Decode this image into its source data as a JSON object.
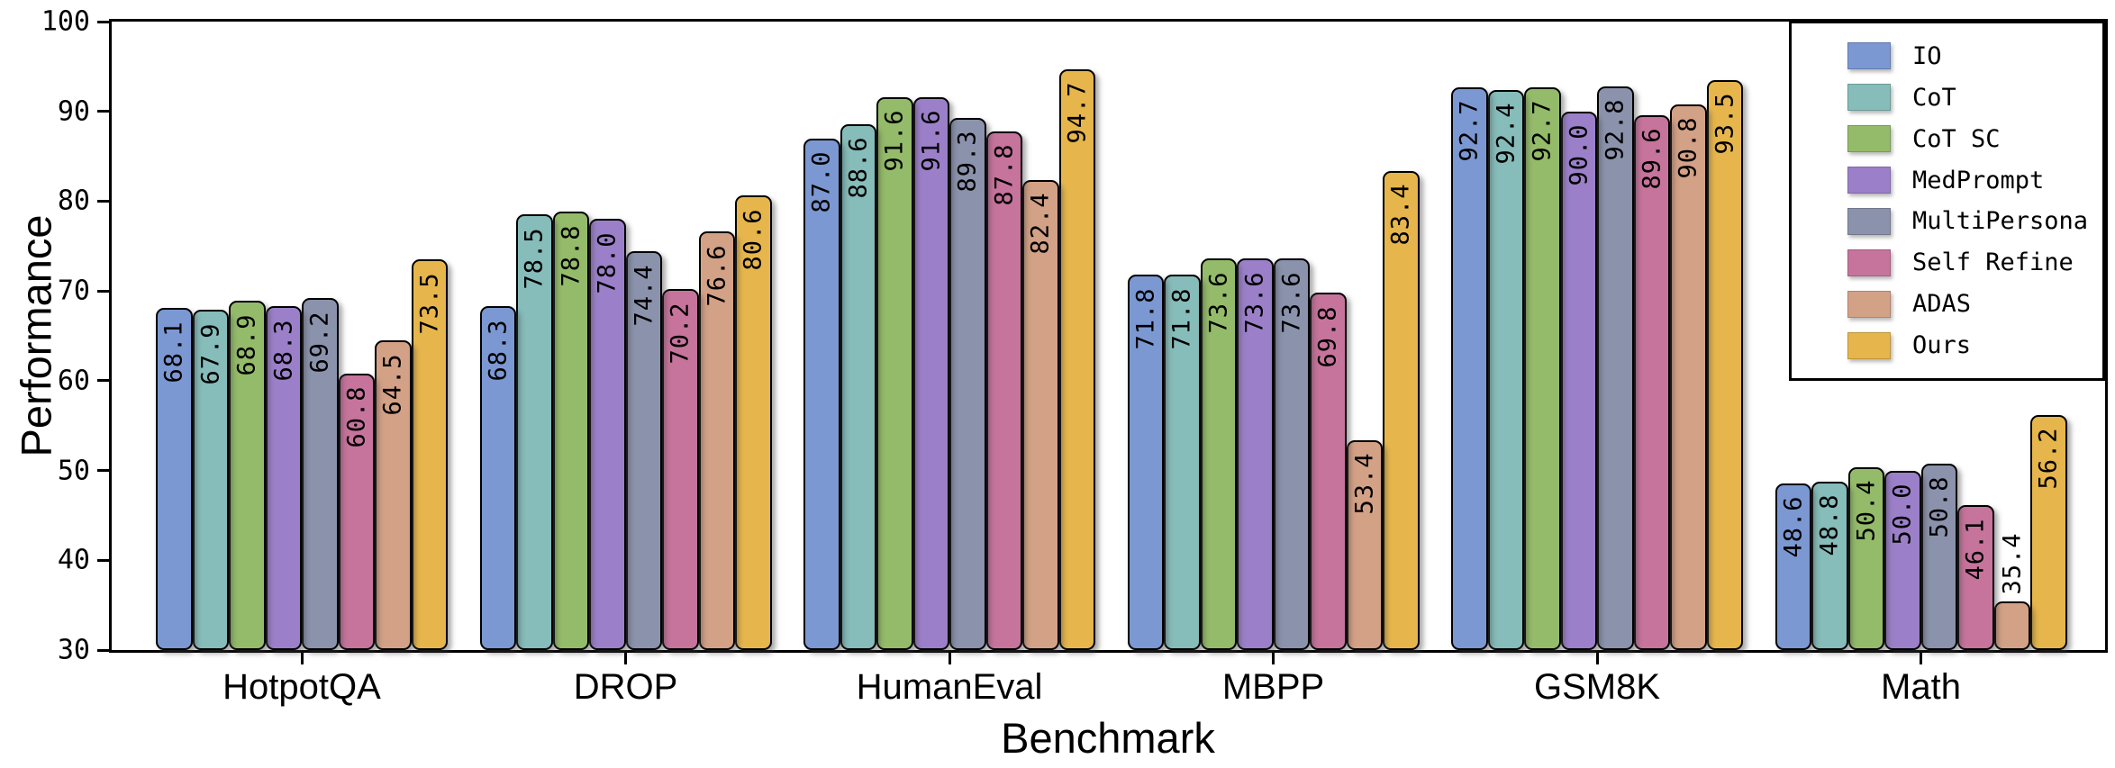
{
  "chart_data": {
    "type": "bar",
    "title": "",
    "xlabel": "Benchmark",
    "ylabel": "Performance",
    "categories": [
      "HotpotQA",
      "DROP",
      "HumanEval",
      "MBPP",
      "GSM8K",
      "Math"
    ],
    "series": [
      {
        "name": "IO",
        "color": "#7b98d2",
        "values": [
          68.1,
          68.3,
          87.0,
          71.8,
          92.7,
          48.6
        ]
      },
      {
        "name": "CoT",
        "color": "#86bcb9",
        "values": [
          67.9,
          78.5,
          88.6,
          71.8,
          92.4,
          48.8
        ]
      },
      {
        "name": "CoT SC",
        "color": "#94bb6a",
        "values": [
          68.9,
          78.8,
          91.6,
          73.6,
          92.7,
          50.4
        ]
      },
      {
        "name": "MedPrompt",
        "color": "#9b80c9",
        "values": [
          68.3,
          78.0,
          91.6,
          73.6,
          90.0,
          50.0
        ]
      },
      {
        "name": "MultiPersona",
        "color": "#8b92ac",
        "values": [
          69.2,
          74.4,
          89.3,
          73.6,
          92.8,
          50.8
        ]
      },
      {
        "name": "Self Refine",
        "color": "#c6749c",
        "values": [
          60.8,
          70.2,
          87.8,
          69.8,
          89.6,
          46.1
        ]
      },
      {
        "name": "ADAS",
        "color": "#d3a186",
        "values": [
          64.5,
          76.6,
          82.4,
          53.4,
          90.8,
          35.4
        ]
      },
      {
        "name": "Ours",
        "color": "#e6b64c",
        "values": [
          73.5,
          80.6,
          94.7,
          83.4,
          93.5,
          56.2
        ]
      }
    ],
    "ylim": [
      30,
      100
    ],
    "y_ticks": [
      30,
      40,
      50,
      60,
      70,
      80,
      90,
      100
    ],
    "value_label_decimals": 1,
    "bar_edge_color": "#000000",
    "legend_position": "upper right",
    "grid": false
  }
}
